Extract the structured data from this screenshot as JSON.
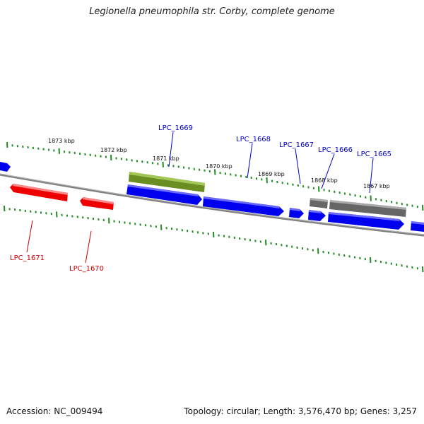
{
  "title": "Legionella pneumophila str. Corby, complete genome",
  "footer": {
    "accession": "Accession: NC_009494",
    "summary": "Topology: circular; Length: 3,576,470 bp; Genes: 3,257"
  },
  "ruler": [
    "1873 kbp",
    "1872 kbp",
    "1871 kbp",
    "1870 kbp",
    "1869 kbp",
    "1868 kbp",
    "1867 kbp"
  ],
  "genes": {
    "forward": [
      "LPC_1669",
      "LPC_1668",
      "LPC_1667",
      "LPC_1666",
      "LPC_1665"
    ],
    "reverse": [
      "LPC_1671",
      "LPC_1670"
    ]
  },
  "colors": {
    "forward_label": "#0000cc",
    "reverse_label": "#cc0000",
    "cds_forward": "#0000ee",
    "cds_reverse": "#ee0000",
    "rna": "#6b8e23",
    "other": "#666666",
    "backbone": "#808080",
    "tick": "#228b22"
  }
}
